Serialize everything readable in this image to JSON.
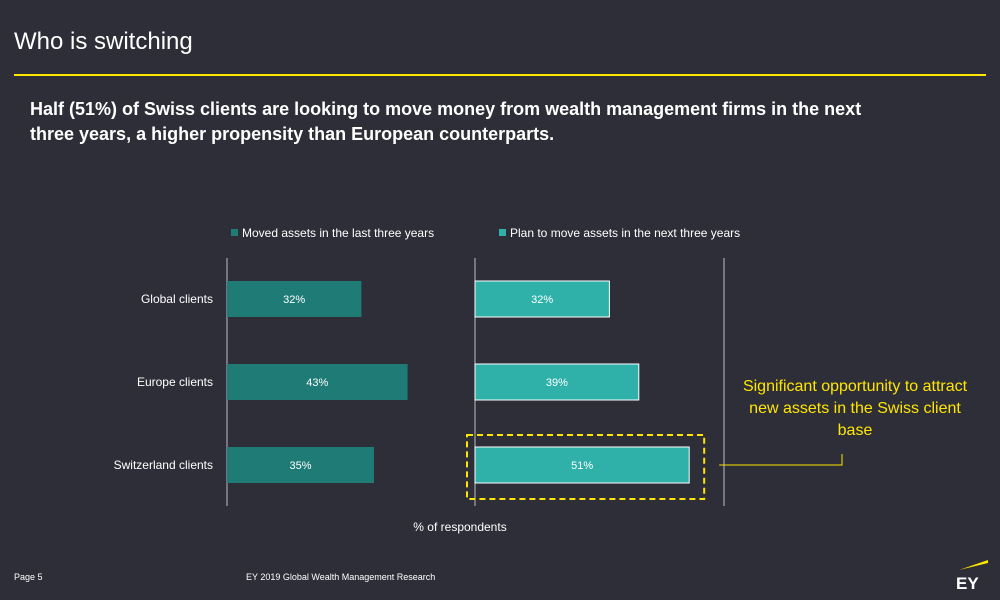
{
  "header": {
    "title": "Who is switching",
    "subtitle": "Half (51%) of Swiss clients are looking to move money from wealth management firms in the next three years, a higher propensity than European counterparts."
  },
  "footer": {
    "page": "Page 5",
    "source": "EY 2019 Global Wealth Management Research",
    "logo_text": "EY"
  },
  "colors": {
    "background": "#2e2e38",
    "accent": "#ffe600",
    "series_moved": "#1f7b76",
    "series_plan": "#2fb1aa"
  },
  "chart_data": {
    "type": "bar",
    "orientation": "horizontal",
    "categories": [
      "Global clients",
      "Europe clients",
      "Switzerland clients"
    ],
    "series": [
      {
        "name": "Moved assets in the last three years",
        "values": [
          32,
          43,
          35
        ],
        "labels": [
          "32%",
          "43%",
          "35%"
        ]
      },
      {
        "name": "Plan to move assets in the next three years",
        "values": [
          32,
          39,
          51
        ],
        "labels": [
          "32%",
          "39%",
          "51%"
        ]
      }
    ],
    "xlabel": "% of respondents",
    "xlim": [
      0,
      100
    ],
    "legend": "top",
    "grid": false,
    "highlight": {
      "series": 1,
      "category": 2
    },
    "annotation": "Significant opportunity to attract new assets in the Swiss client base"
  }
}
